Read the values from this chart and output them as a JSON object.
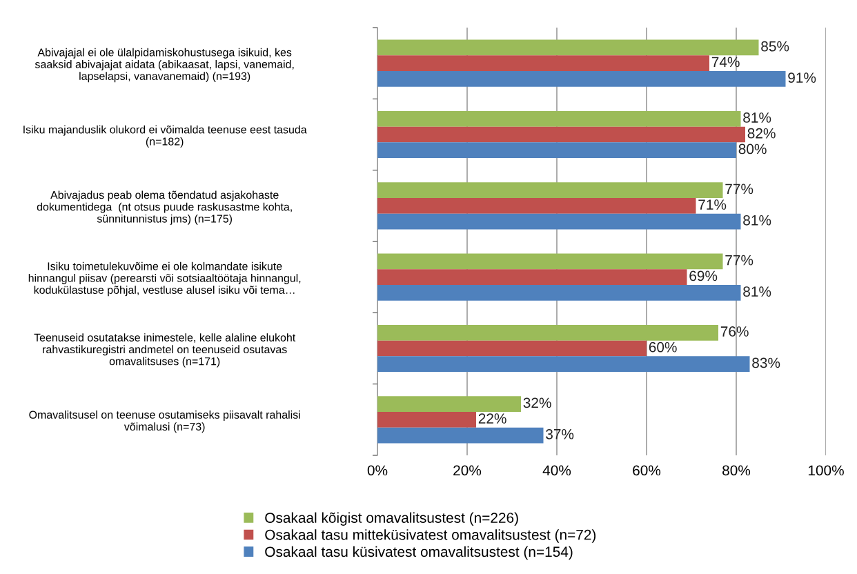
{
  "chart_data": {
    "type": "bar",
    "orientation": "horizontal",
    "categories": [
      "Abivajajal ei ole ülalpidamiskohustusega isikuid, kes\nsaaksid abivajajat aidata (abikaasat, lapsi, vanemaid,\nlapselapsi, vanavanemaid) (n=193)",
      "Isiku majanduslik olukord ei võimalda teenuse eest tasuda\n(n=182)",
      "Abivajadus peab olema tõendatud asjakohaste\ndokumentidega  (nt otsus puude raskusastme kohta,\nsünnitunnistus jms) (n=175)",
      "Isiku toimetulekuvõime ei ole kolmandate isikute\nhinnangul piisav (perearsti või sotsiaaltöötaja hinnangul,\nkodukülastuse põhjal, vestluse alusel isiku või tema…",
      "Teenuseid osutatakse inimestele, kelle alaline elukoht\nrahvastikuregistri andmetel on teenuseid osutavas\nomavalitsuses (n=171)",
      "Omavalitsusel on teenuse osutamiseks piisavalt rahalisi\nvõimalusi (n=73)"
    ],
    "series": [
      {
        "name": "Osakaal kõigist omavalitsustest (n=226)",
        "color": "#9bbb59",
        "values": [
          85,
          81,
          77,
          77,
          76,
          32
        ],
        "value_labels": [
          "85%",
          "81%",
          "77%",
          "77%",
          "76%",
          "32%"
        ]
      },
      {
        "name": "Osakaal tasu mitteküsivatest omavalitsustest (n=72)",
        "color": "#c0504d",
        "values": [
          74,
          82,
          71,
          69,
          60,
          22
        ],
        "value_labels": [
          "74%",
          "82%",
          "71%",
          "69%",
          "60%",
          "22%"
        ]
      },
      {
        "name": "Osakaal tasu küsivatest omavalitsustest (n=154)",
        "color": "#4f81bd",
        "values": [
          91,
          80,
          81,
          81,
          83,
          37
        ],
        "value_labels": [
          "91%",
          "80%",
          "81%",
          "81%",
          "83%",
          "37%"
        ]
      }
    ],
    "xlim": [
      0,
      100
    ],
    "xticks": [
      {
        "value": 0,
        "label": "0%"
      },
      {
        "value": 20,
        "label": "20%"
      },
      {
        "value": 40,
        "label": "40%"
      },
      {
        "value": 60,
        "label": "60%"
      },
      {
        "value": 80,
        "label": "80%"
      },
      {
        "value": 100,
        "label": "100%"
      }
    ],
    "grid": "x",
    "legend": "bottom"
  }
}
